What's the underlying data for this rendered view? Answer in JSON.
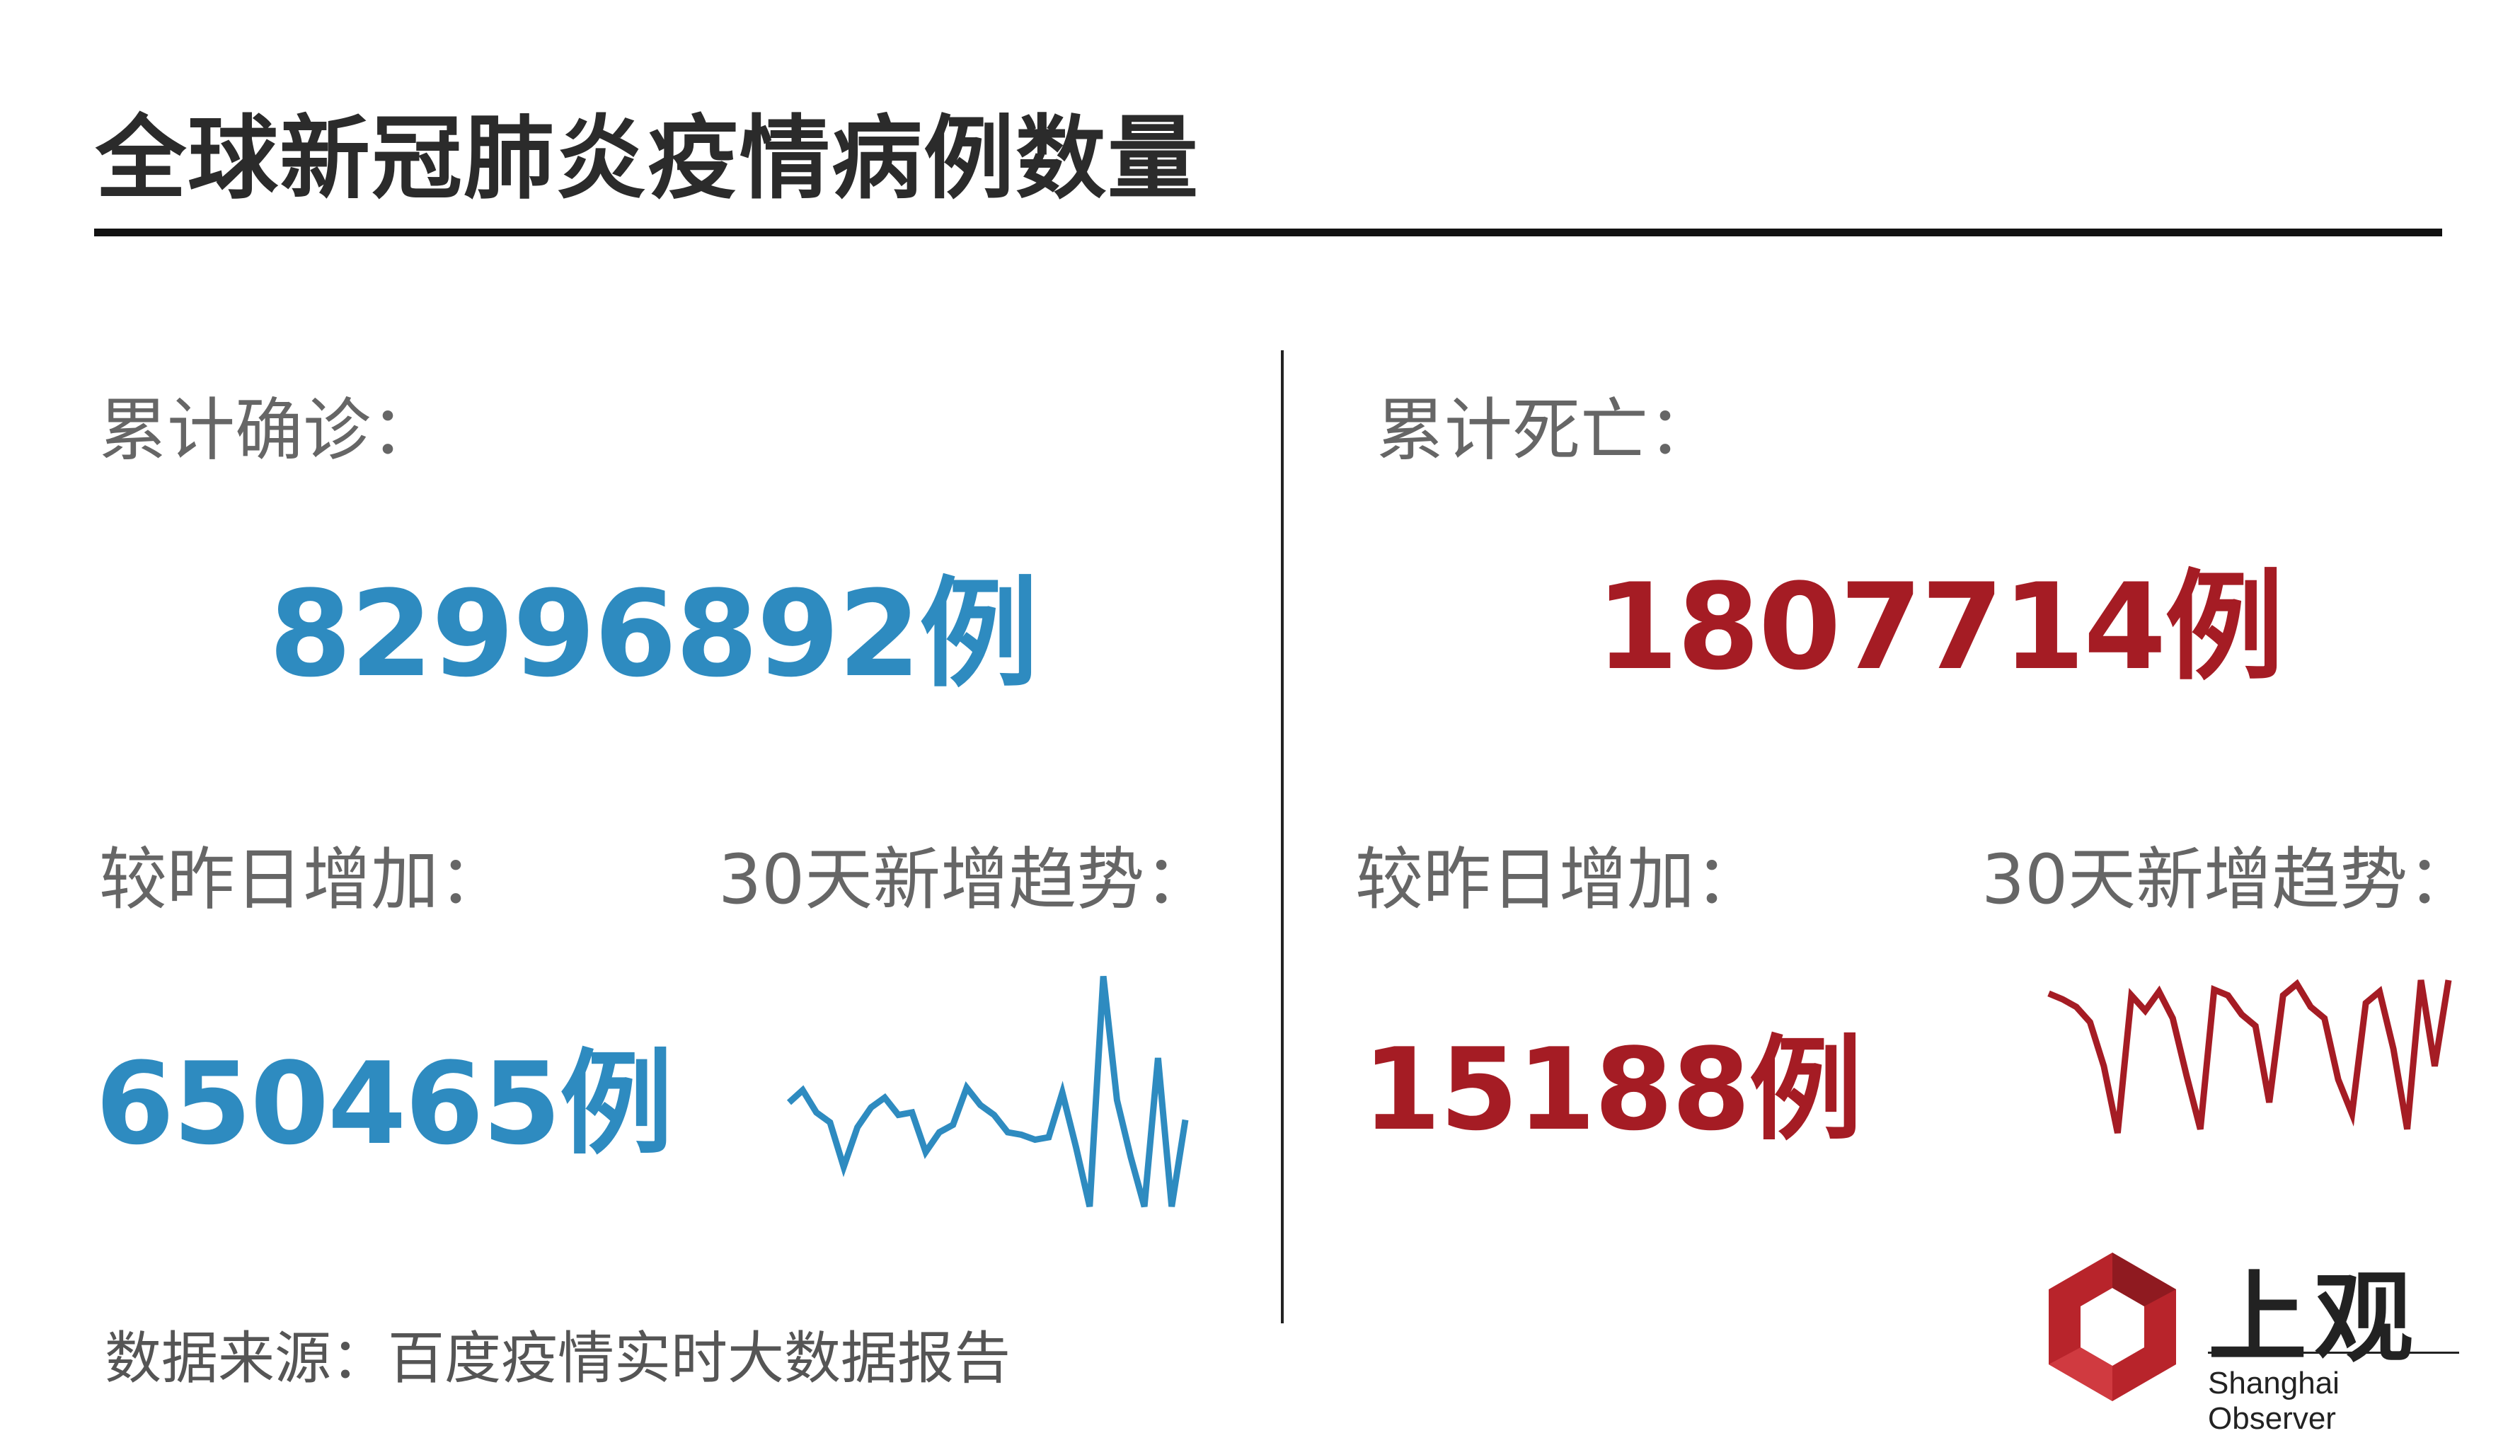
{
  "header": {
    "title": "全球新冠肺炎疫情病例数量"
  },
  "confirmed": {
    "label": "累计确诊：",
    "total": "82996892例",
    "increase_label": "较昨日增加：",
    "increase": "650465例",
    "trend_label": "30天新增趋势：",
    "trend": [
      0.42,
      0.47,
      0.38,
      0.34,
      0.16,
      0.32,
      0.4,
      0.44,
      0.37,
      0.38,
      0.22,
      0.3,
      0.33,
      0.48,
      0.41,
      0.37,
      0.3,
      0.29,
      0.27,
      0.28,
      0.46,
      0.24,
      0.0,
      0.93,
      0.43,
      0.2,
      0.0,
      0.6,
      0.0,
      0.35
    ]
  },
  "deaths": {
    "label": "累计死亡：",
    "total": "1807714例",
    "increase_label": "较昨日增加：",
    "increase": "15188例",
    "trend_label": "30天新增趋势：",
    "trend": [
      0.93,
      0.9,
      0.86,
      0.78,
      0.55,
      0.2,
      0.92,
      0.84,
      0.94,
      0.8,
      0.5,
      0.22,
      0.95,
      0.92,
      0.82,
      0.76,
      0.36,
      0.92,
      0.98,
      0.86,
      0.8,
      0.48,
      0.3,
      0.88,
      0.94,
      0.64,
      0.22,
      1.0,
      0.55,
      1.0
    ]
  },
  "source": {
    "text": "数据来源：百度疫情实时大数据报告"
  },
  "logo": {
    "name": "上观",
    "subtitle": "Shanghai Observer",
    "brand_color": "#b8242b"
  },
  "colors": {
    "blue": "#2e8bc0",
    "red": "#a51c24"
  }
}
